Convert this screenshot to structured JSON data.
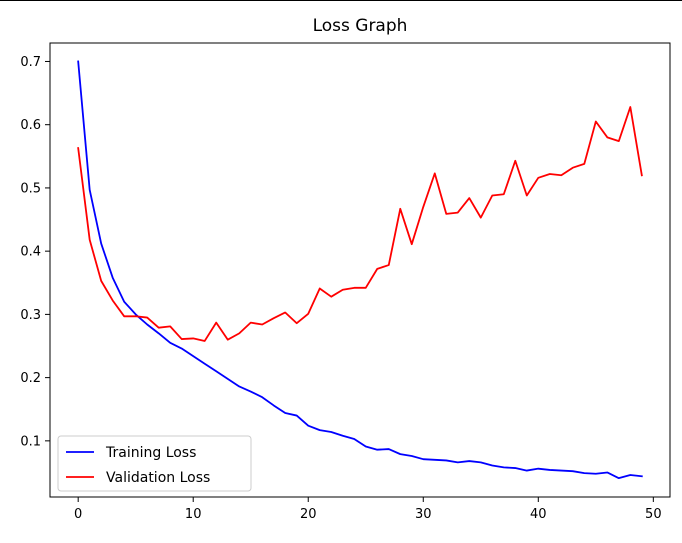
{
  "chart_data": {
    "type": "line",
    "title": "Loss Graph",
    "xlabel": "",
    "ylabel": "",
    "xlim": [
      -2.45,
      51.45
    ],
    "ylim": [
      0.0112,
      0.7292
    ],
    "xticks": [
      0,
      10,
      20,
      30,
      40,
      50
    ],
    "yticks": [
      0.1,
      0.2,
      0.3,
      0.4,
      0.5,
      0.6,
      0.7
    ],
    "x": [
      0,
      1,
      2,
      3,
      4,
      5,
      6,
      7,
      8,
      9,
      10,
      11,
      12,
      13,
      14,
      15,
      16,
      17,
      18,
      19,
      20,
      21,
      22,
      23,
      24,
      25,
      26,
      27,
      28,
      29,
      30,
      31,
      32,
      33,
      34,
      35,
      36,
      37,
      38,
      39,
      40,
      41,
      42,
      43,
      44,
      45,
      46,
      47,
      48,
      49
    ],
    "series": [
      {
        "name": "Training Loss",
        "color": "#0000ff",
        "values": [
          0.7,
          0.497,
          0.412,
          0.358,
          0.32,
          0.3,
          0.284,
          0.27,
          0.255,
          0.246,
          0.234,
          0.222,
          0.21,
          0.198,
          0.186,
          0.178,
          0.169,
          0.156,
          0.144,
          0.14,
          0.124,
          0.117,
          0.114,
          0.108,
          0.103,
          0.091,
          0.086,
          0.087,
          0.079,
          0.076,
          0.071,
          0.07,
          0.069,
          0.066,
          0.068,
          0.066,
          0.061,
          0.058,
          0.057,
          0.053,
          0.056,
          0.054,
          0.053,
          0.052,
          0.049,
          0.048,
          0.05,
          0.041,
          0.046,
          0.044
        ]
      },
      {
        "name": "Validation Loss",
        "color": "#ff0000",
        "values": [
          0.563,
          0.418,
          0.353,
          0.322,
          0.297,
          0.297,
          0.295,
          0.279,
          0.281,
          0.261,
          0.262,
          0.258,
          0.287,
          0.26,
          0.27,
          0.287,
          0.284,
          0.294,
          0.303,
          0.286,
          0.301,
          0.341,
          0.328,
          0.339,
          0.342,
          0.342,
          0.372,
          0.378,
          0.467,
          0.411,
          0.47,
          0.523,
          0.459,
          0.461,
          0.484,
          0.453,
          0.488,
          0.49,
          0.543,
          0.488,
          0.516,
          0.522,
          0.52,
          0.532,
          0.538,
          0.605,
          0.58,
          0.574,
          0.628,
          0.52
        ]
      }
    ],
    "legend": {
      "position": "lower-left",
      "entries": [
        "Training Loss",
        "Validation Loss"
      ]
    },
    "grid": false
  }
}
